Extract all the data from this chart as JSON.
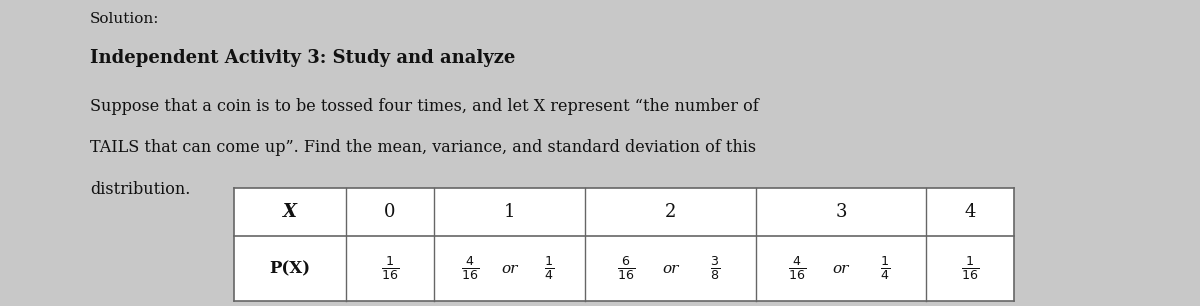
{
  "background_color": "#c8c8c8",
  "text_area_color": "#e8e8e8",
  "solution_text": "Solution:",
  "title_text": "Independent Activity 3: Study and analyze",
  "body_line1": "Suppose that a coin is to be tossed four times, and let X represent “the number of",
  "body_line2": "TAILS that can come up”. Find the mean, variance, and standard deviation of this",
  "body_line3": "distribution.",
  "text_color": "#111111",
  "table_bg": "#ffffff",
  "table_border": "#666666",
  "col_headers": [
    "X",
    "0",
    "1",
    "2",
    "3",
    "4"
  ],
  "row_label": "P(X)",
  "cell_data": [
    [
      1,
      16,
      null,
      null
    ],
    [
      4,
      16,
      1,
      4
    ],
    [
      6,
      16,
      3,
      8
    ],
    [
      4,
      16,
      1,
      4
    ],
    [
      1,
      16,
      null,
      null
    ]
  ],
  "font_size_solution": 11,
  "font_size_title": 13,
  "font_size_body": 11.5,
  "font_size_table_header": 13,
  "font_size_table_data": 11,
  "font_size_label": 12
}
